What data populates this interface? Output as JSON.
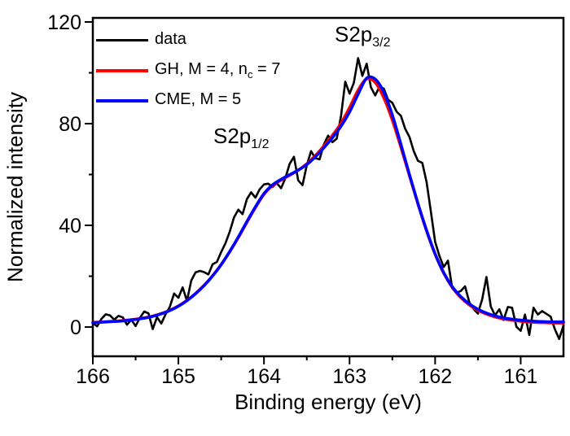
{
  "figure": {
    "x_axis": {
      "title": "Binding energy (eV)"
    },
    "y_axis": {
      "title": "Normalized intensity"
    }
  },
  "legend": {
    "items": [
      {
        "name": "data",
        "color": "#000000",
        "label_pre": "data",
        "label_sub": "",
        "label_post": ""
      },
      {
        "name": "gh-fit",
        "color": "#ff0000",
        "label_pre": "GH, M = 4, n",
        "label_sub": "c",
        "label_post": " = 7"
      },
      {
        "name": "cme-fit",
        "color": "#0000ff",
        "label_pre": "CME, M = 5",
        "label_sub": "",
        "label_post": ""
      }
    ]
  },
  "annotations": {
    "peak1": {
      "pre": "S2p",
      "sub": "1/2"
    },
    "peak2": {
      "pre": "S2p",
      "sub": "3/2"
    }
  },
  "chart_data": {
    "type": "line",
    "title": "",
    "xlabel": "Binding energy (eV)",
    "ylabel": "Normalized intensity",
    "x_reversed": true,
    "xlim": [
      166.0,
      160.5
    ],
    "ylim": [
      -11.5,
      121.6
    ],
    "x_major_ticks": [
      166,
      165,
      164,
      163,
      162,
      161
    ],
    "x_minor_ticks": [
      165.5,
      164.5,
      163.5,
      162.5,
      161.5
    ],
    "y_major_ticks": [
      0,
      40,
      80,
      120
    ],
    "y_minor_ticks": [
      20,
      60,
      100
    ],
    "grid": false,
    "legend_position": "top-left-inside",
    "series": [
      {
        "name": "data",
        "color": "#000000",
        "width": 2.6,
        "smooth": false,
        "x": [
          166,
          165.95,
          165.9,
          165.85,
          165.8,
          165.75,
          165.7,
          165.65,
          165.6,
          165.55,
          165.5,
          165.45,
          165.4,
          165.35,
          165.3,
          165.25,
          165.2,
          165.15,
          165.1,
          165.05,
          165,
          164.95,
          164.9,
          164.85,
          164.8,
          164.75,
          164.7,
          164.65,
          164.6,
          164.55,
          164.5,
          164.45,
          164.4,
          164.35,
          164.3,
          164.25,
          164.2,
          164.15,
          164.1,
          164.05,
          164,
          163.95,
          163.9,
          163.85,
          163.8,
          163.75,
          163.7,
          163.65,
          163.6,
          163.55,
          163.5,
          163.45,
          163.4,
          163.35,
          163.3,
          163.25,
          163.2,
          163.15,
          163.1,
          163.05,
          163,
          162.95,
          162.9,
          162.85,
          162.8,
          162.75,
          162.7,
          162.65,
          162.6,
          162.55,
          162.5,
          162.45,
          162.4,
          162.35,
          162.3,
          162.25,
          162.2,
          162.15,
          162.1,
          162.05,
          162,
          161.95,
          161.9,
          161.85,
          161.8,
          161.75,
          161.7,
          161.65,
          161.6,
          161.55,
          161.5,
          161.45,
          161.4,
          161.35,
          161.3,
          161.25,
          161.2,
          161.15,
          161.1,
          161.05,
          161,
          160.95,
          160.9,
          160.85,
          160.8,
          160.75,
          160.7,
          160.65,
          160.6,
          160.55,
          160.5
        ],
        "values": [
          1.6,
          0.3,
          3.2,
          5.0,
          4.6,
          2.9,
          4.4,
          3.8,
          0.9,
          2.9,
          0.4,
          3.6,
          6.1,
          5.4,
          -0.8,
          3.9,
          1.4,
          5.0,
          8.0,
          13.2,
          11.5,
          15.6,
          10.3,
          18.3,
          21.5,
          22.1,
          21.6,
          20.7,
          24.7,
          25.6,
          29.5,
          33.0,
          37.5,
          43.1,
          46.2,
          44.4,
          50.3,
          53.0,
          50.9,
          54.2,
          56.1,
          56.4,
          55.1,
          56.6,
          54.6,
          58.6,
          64.2,
          67.0,
          57.7,
          55.8,
          63.6,
          69.2,
          66.4,
          66.0,
          71.8,
          75.3,
          72.7,
          74.1,
          83.0,
          96.5,
          91.8,
          96.0,
          105.8,
          98.8,
          103.6,
          94.3,
          91.1,
          94.6,
          93.8,
          89.4,
          88.2,
          84.7,
          83.1,
          78.0,
          74.8,
          69.2,
          65.4,
          64.6,
          57.0,
          45.5,
          33.5,
          28.0,
          23.6,
          26.1,
          15.2,
          13.5,
          14.2,
          16.0,
          9.7,
          7.1,
          5.3,
          11.0,
          19.7,
          8.1,
          4.6,
          7.0,
          2.8,
          7.9,
          7.6,
          0.1,
          -1.5,
          4.9,
          -3.1,
          7.6,
          4.9,
          6.3,
          5.2,
          4.1,
          -0.9,
          -4.7,
          0.6
        ]
      },
      {
        "name": "GH, M = 4, nc = 7",
        "color": "#ff0000",
        "width": 3.6,
        "smooth": true,
        "x": [
          166,
          165.9,
          165.8,
          165.7,
          165.6,
          165.5,
          165.4,
          165.3,
          165.2,
          165.1,
          165,
          164.9,
          164.8,
          164.7,
          164.6,
          164.5,
          164.4,
          164.3,
          164.2,
          164.1,
          164,
          163.9,
          163.8,
          163.7,
          163.6,
          163.5,
          163.4,
          163.3,
          163.2,
          163.1,
          163,
          162.9,
          162.8,
          162.7,
          162.6,
          162.5,
          162.4,
          162.3,
          162.2,
          162.1,
          162,
          161.9,
          161.8,
          161.7,
          161.6,
          161.5,
          161.4,
          161.3,
          161.2,
          161.1,
          161,
          160.9,
          160.8,
          160.7,
          160.6,
          160.5
        ],
        "values": [
          1.8,
          2.0,
          2.2,
          2.4,
          2.7,
          3.1,
          3.6,
          4.3,
          5.3,
          6.6,
          8.3,
          10.5,
          13.2,
          16.4,
          20.2,
          24.6,
          29.6,
          35.2,
          41.2,
          47.0,
          52.2,
          55.6,
          57.8,
          59.7,
          61.7,
          64.2,
          67.4,
          71.2,
          75.4,
          80.2,
          86.3,
          93.2,
          97.6,
          96.2,
          90.2,
          81.4,
          70.8,
          59.6,
          48.4,
          37.8,
          28.6,
          21.2,
          15.6,
          11.6,
          8.7,
          6.6,
          5.1,
          4.0,
          3.2,
          2.7,
          2.3,
          2.0,
          1.8,
          1.7,
          1.6,
          1.6
        ]
      },
      {
        "name": "CME, M = 5",
        "color": "#0000ff",
        "width": 3.6,
        "smooth": true,
        "x": [
          166,
          165.9,
          165.8,
          165.7,
          165.6,
          165.5,
          165.4,
          165.3,
          165.2,
          165.1,
          165,
          164.9,
          164.8,
          164.7,
          164.6,
          164.5,
          164.4,
          164.3,
          164.2,
          164.1,
          164,
          163.9,
          163.8,
          163.7,
          163.6,
          163.5,
          163.4,
          163.3,
          163.2,
          163.1,
          163,
          162.9,
          162.8,
          162.7,
          162.6,
          162.5,
          162.4,
          162.3,
          162.2,
          162.1,
          162,
          161.9,
          161.8,
          161.7,
          161.6,
          161.5,
          161.4,
          161.3,
          161.2,
          161.1,
          161,
          160.9,
          160.8,
          160.7,
          160.6,
          160.5
        ],
        "values": [
          1.7,
          1.9,
          2.1,
          2.3,
          2.6,
          3.0,
          3.5,
          4.2,
          5.2,
          6.5,
          8.2,
          10.4,
          13.1,
          16.3,
          20.1,
          24.5,
          29.7,
          35.4,
          41.5,
          47.3,
          52.5,
          55.9,
          58.1,
          59.9,
          61.7,
          63.9,
          66.9,
          70.5,
          74.5,
          79.0,
          84.6,
          91.6,
          97.9,
          97.5,
          92.4,
          83.4,
          71.9,
          60.0,
          48.6,
          38.0,
          28.8,
          21.4,
          15.9,
          12.0,
          9.1,
          7.0,
          5.5,
          4.4,
          3.6,
          3.1,
          2.7,
          2.4,
          2.2,
          2.1,
          2.0,
          2.0
        ]
      }
    ]
  }
}
